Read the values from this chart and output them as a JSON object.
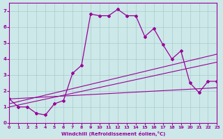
{
  "xlabel": "Windchill (Refroidissement éolien,°C)",
  "bg_color": "#cce8e8",
  "line_color": "#990099",
  "grid_color": "#aacccc",
  "xlim": [
    0,
    23
  ],
  "ylim": [
    0,
    7.5
  ],
  "xticks": [
    0,
    1,
    2,
    3,
    4,
    5,
    6,
    7,
    8,
    9,
    10,
    11,
    12,
    13,
    14,
    15,
    16,
    17,
    18,
    19,
    20,
    21,
    22,
    23
  ],
  "yticks": [
    0,
    1,
    2,
    3,
    4,
    5,
    6,
    7
  ],
  "series1_x": [
    0,
    1,
    2,
    3,
    4,
    5,
    6,
    7,
    8,
    9,
    10,
    11,
    12,
    13,
    14,
    15,
    16,
    17,
    18,
    19,
    20,
    21,
    22,
    23
  ],
  "series1_y": [
    1.5,
    1.0,
    1.0,
    0.6,
    0.5,
    1.2,
    1.4,
    3.1,
    3.6,
    6.8,
    6.7,
    6.7,
    7.1,
    6.7,
    6.7,
    5.4,
    5.9,
    4.9,
    4.0,
    4.5,
    2.5,
    1.9,
    2.6,
    2.6
  ],
  "line1_x": [
    0,
    23
  ],
  "line1_y": [
    1.0,
    3.8
  ],
  "line2_x": [
    0,
    23
  ],
  "line2_y": [
    1.2,
    4.3
  ],
  "line3_x": [
    0,
    23
  ],
  "line3_y": [
    1.5,
    2.2
  ]
}
